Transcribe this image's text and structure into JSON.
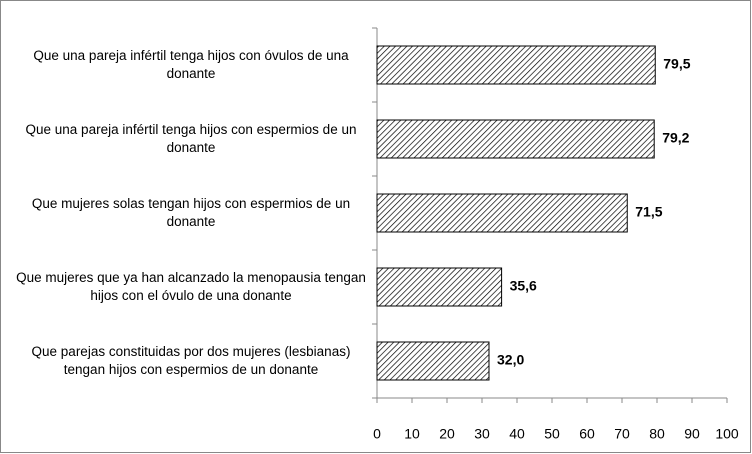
{
  "chart_data": {
    "type": "bar",
    "orientation": "horizontal",
    "categories": [
      "Que una pareja infértil tenga hijos con óvulos de una donante",
      "Que una pareja infértil tenga hijos con espermios de un donante",
      "Que mujeres solas tengan hijos con espermios de un donante",
      "Que mujeres que ya han alcanzado la menopausia tengan hijos con el óvulo de una donante",
      "Que parejas constituidas por dos mujeres (lesbianas) tengan hijos con espermios de un donante"
    ],
    "values": [
      79.5,
      79.2,
      71.5,
      35.6,
      32.0
    ],
    "value_labels": [
      "79,5",
      "79,2",
      "71,5",
      "35,6",
      "32,0"
    ],
    "color": "#ffffff",
    "xlim": [
      0,
      100
    ],
    "xticks": [
      0,
      10,
      20,
      30,
      40,
      50,
      60,
      70,
      80,
      90,
      100
    ]
  }
}
